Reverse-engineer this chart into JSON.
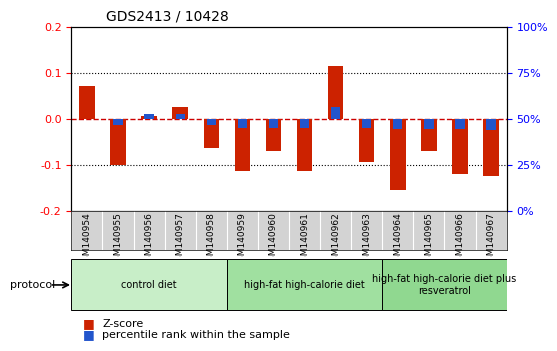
{
  "title": "GDS2413 / 10428",
  "samples": [
    "GSM140954",
    "GSM140955",
    "GSM140956",
    "GSM140957",
    "GSM140958",
    "GSM140959",
    "GSM140960",
    "GSM140961",
    "GSM140962",
    "GSM140963",
    "GSM140964",
    "GSM140965",
    "GSM140966",
    "GSM140967"
  ],
  "zscore": [
    0.07,
    -0.1,
    0.005,
    0.025,
    -0.065,
    -0.115,
    -0.07,
    -0.115,
    0.115,
    -0.095,
    -0.155,
    -0.07,
    -0.12,
    -0.125
  ],
  "pct_rank": [
    0.0,
    -0.015,
    0.01,
    0.01,
    -0.015,
    -0.02,
    -0.02,
    -0.02,
    0.025,
    -0.02,
    -0.022,
    -0.022,
    -0.022,
    -0.025
  ],
  "ylim": [
    -0.2,
    0.2
  ],
  "yticks_left": [
    -0.2,
    -0.1,
    0.0,
    0.1,
    0.2
  ],
  "yticks_right": [
    0,
    25,
    50,
    75,
    100
  ],
  "yticks_right_vals": [
    -0.2,
    -0.1,
    0.0,
    0.1,
    0.2
  ],
  "groups": [
    {
      "label": "control diet",
      "start": 0,
      "end": 4,
      "color": "#c8eec8"
    },
    {
      "label": "high-fat high-calorie diet",
      "start": 5,
      "end": 9,
      "color": "#a0e0a0"
    },
    {
      "label": "high-fat high-calorie diet plus\nresveratrol",
      "start": 10,
      "end": 13,
      "color": "#90d890"
    }
  ],
  "bar_width": 0.5,
  "zscore_color": "#cc2200",
  "pct_color": "#2255cc",
  "zero_line_color": "#cc0000",
  "grid_color": "#000000",
  "bg_color": "#ffffff",
  "tick_area_color": "#d3d3d3",
  "legend_zscore": "Z-score",
  "legend_pct": "percentile rank within the sample",
  "protocol_label": "protocol"
}
